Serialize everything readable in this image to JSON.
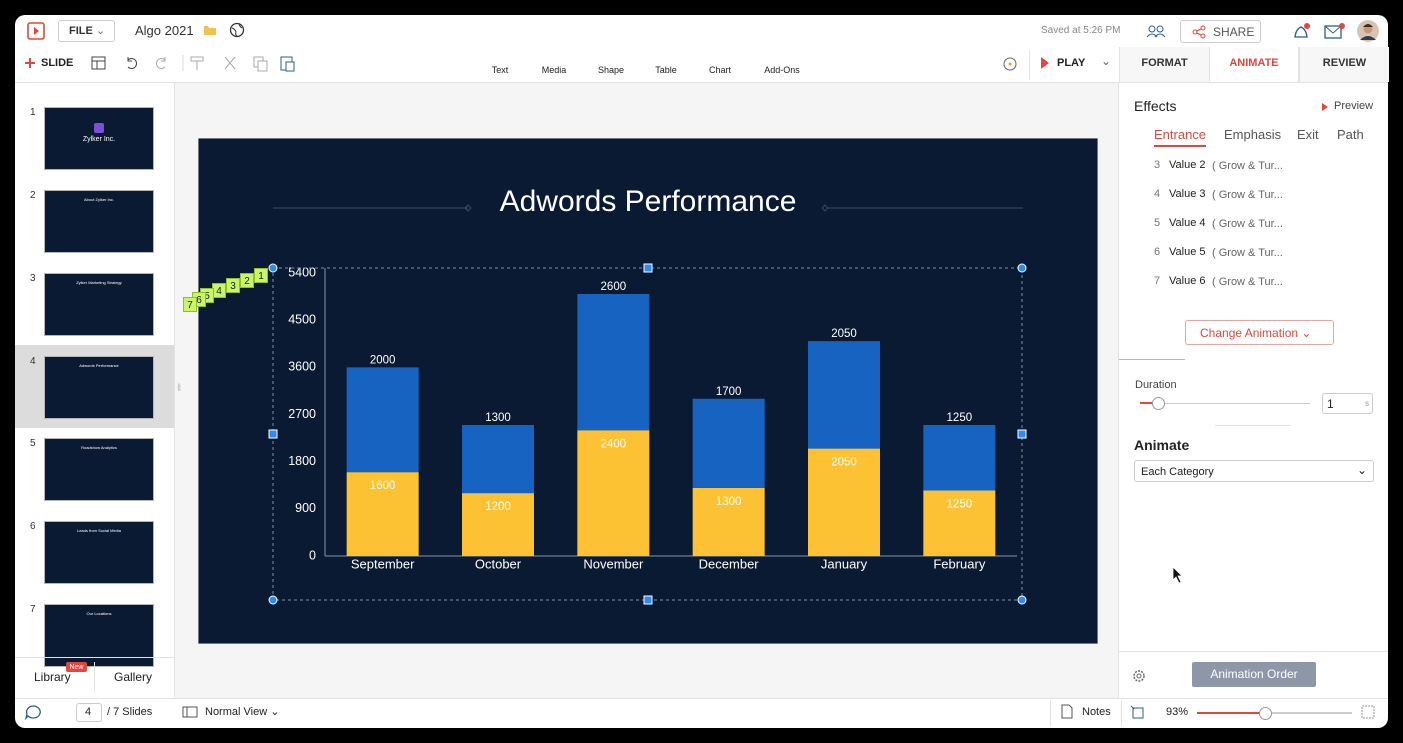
{
  "header": {
    "menu": "FILE",
    "document_title": "Algo 2021",
    "saved_status": "Saved at 5:26 PM",
    "share": "SHARE"
  },
  "toolbar": {
    "new_slide": "SLIDE",
    "insert": [
      "Text",
      "Media",
      "Shape",
      "Table",
      "Chart",
      "Add-Ons"
    ],
    "play": "PLAY"
  },
  "panel_tabs": [
    "FORMAT",
    "ANIMATE",
    "REVIEW"
  ],
  "slides": [
    {
      "number": 1,
      "title": "Zylker Inc."
    },
    {
      "number": 2,
      "title": "About Zylker Inc."
    },
    {
      "number": 3,
      "title": "Zylker Marketing Strategy"
    },
    {
      "number": 4,
      "title": "Adwords Performance"
    },
    {
      "number": 5,
      "title": "Roadshow Analytics"
    },
    {
      "number": 6,
      "title": "Leads from Social Media"
    },
    {
      "number": 7,
      "title": "Our Locations"
    }
  ],
  "slide_panel_footer": {
    "library": "Library",
    "badge": "New",
    "gallery": "Gallery"
  },
  "animation_tags": [
    1,
    2,
    3,
    4,
    5,
    6,
    7
  ],
  "chart_data": {
    "type": "bar",
    "stacked": true,
    "title": "Adwords Performance",
    "categories": [
      "September",
      "October",
      "November",
      "December",
      "January",
      "February"
    ],
    "series": [
      {
        "color": "#fdc234",
        "values": [
          1600,
          1200,
          2400,
          1300,
          2050,
          1250
        ]
      },
      {
        "color": "#1763c2",
        "values": [
          2000,
          1300,
          2600,
          1700,
          2050,
          1250
        ]
      }
    ],
    "ylim": [
      0,
      5400
    ],
    "yticks": [
      0,
      900,
      1800,
      2700,
      3600,
      4500,
      5400
    ],
    "grid": false,
    "data_labels": true
  },
  "animate_panel": {
    "effects": "Effects",
    "preview": "Preview",
    "effect_tabs": [
      "Entrance",
      "Emphasis",
      "Exit",
      "Path"
    ],
    "items": [
      {
        "order": 3,
        "name": "Value 2",
        "effect": "( Grow & Tur..."
      },
      {
        "order": 4,
        "name": "Value 3",
        "effect": "( Grow & Tur..."
      },
      {
        "order": 5,
        "name": "Value 4",
        "effect": "( Grow & Tur..."
      },
      {
        "order": 6,
        "name": "Value 5",
        "effect": "( Grow & Tur..."
      },
      {
        "order": 7,
        "name": "Value 6",
        "effect": "( Grow & Tur..."
      }
    ],
    "change_animation": "Change Animation",
    "duration_label": "Duration",
    "duration": 1,
    "duration_unit": "s",
    "animate_label": "Animate",
    "animate_option": "Each Category",
    "animation_order": "Animation Order"
  },
  "status_bar": {
    "current_slide": 4,
    "total": "/ 7 Slides",
    "view": "Normal View",
    "notes": "Notes",
    "zoom": "93%"
  }
}
